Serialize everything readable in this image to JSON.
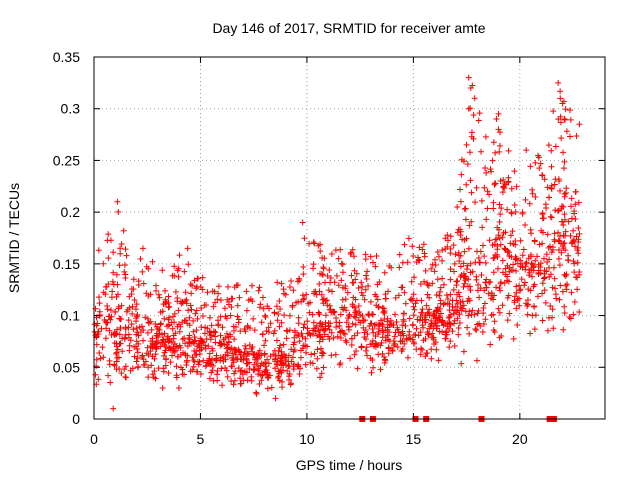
{
  "chart_data": {
    "type": "scatter",
    "title": "Day 146 of 2017, SRMTID for receiver amte",
    "xlabel": "GPS time / hours",
    "ylabel": "SRMTID / TECUs",
    "xlim": [
      0,
      24
    ],
    "ylim": [
      0,
      0.35
    ],
    "grid": true,
    "marker": "+",
    "color": "#ff0000",
    "x_ticks": [
      0,
      5,
      10,
      15,
      20
    ],
    "x_tick_labels": [
      "0",
      "5",
      "10",
      "15",
      "20"
    ],
    "y_ticks": [
      0,
      0.05,
      0.1,
      0.15,
      0.2,
      0.25,
      0.3,
      0.35
    ],
    "y_tick_labels": [
      "0",
      "0.05",
      "0.1",
      "0.15",
      "0.2",
      "0.25",
      "0.3",
      "0.35"
    ],
    "zero_markers_x": [
      12.6,
      13.1,
      15.1,
      15.6,
      18.2,
      21.4,
      21.6
    ],
    "envelope": [
      {
        "x": 0.0,
        "lo": 0.02,
        "mid": 0.08,
        "hi": 0.15
      },
      {
        "x": 1.0,
        "lo": 0.02,
        "mid": 0.1,
        "hi": 0.21
      },
      {
        "x": 2.0,
        "lo": 0.03,
        "mid": 0.085,
        "hi": 0.16
      },
      {
        "x": 3.0,
        "lo": 0.03,
        "mid": 0.08,
        "hi": 0.15
      },
      {
        "x": 4.0,
        "lo": 0.03,
        "mid": 0.08,
        "hi": 0.16
      },
      {
        "x": 5.0,
        "lo": 0.03,
        "mid": 0.075,
        "hi": 0.14
      },
      {
        "x": 6.0,
        "lo": 0.025,
        "mid": 0.07,
        "hi": 0.13
      },
      {
        "x": 7.0,
        "lo": 0.025,
        "mid": 0.065,
        "hi": 0.13
      },
      {
        "x": 8.0,
        "lo": 0.02,
        "mid": 0.06,
        "hi": 0.13
      },
      {
        "x": 9.0,
        "lo": 0.02,
        "mid": 0.065,
        "hi": 0.14
      },
      {
        "x": 10.0,
        "lo": 0.03,
        "mid": 0.08,
        "hi": 0.19
      },
      {
        "x": 11.0,
        "lo": 0.04,
        "mid": 0.1,
        "hi": 0.16
      },
      {
        "x": 12.0,
        "lo": 0.05,
        "mid": 0.11,
        "hi": 0.17
      },
      {
        "x": 13.0,
        "lo": 0.04,
        "mid": 0.1,
        "hi": 0.16
      },
      {
        "x": 14.0,
        "lo": 0.04,
        "mid": 0.09,
        "hi": 0.16
      },
      {
        "x": 15.0,
        "lo": 0.04,
        "mid": 0.1,
        "hi": 0.18
      },
      {
        "x": 16.0,
        "lo": 0.05,
        "mid": 0.1,
        "hi": 0.16
      },
      {
        "x": 17.0,
        "lo": 0.05,
        "mid": 0.11,
        "hi": 0.2
      },
      {
        "x": 17.7,
        "lo": 0.06,
        "mid": 0.16,
        "hi": 0.33
      },
      {
        "x": 18.5,
        "lo": 0.05,
        "mid": 0.14,
        "hi": 0.27
      },
      {
        "x": 19.0,
        "lo": 0.06,
        "mid": 0.17,
        "hi": 0.29
      },
      {
        "x": 20.0,
        "lo": 0.07,
        "mid": 0.15,
        "hi": 0.25
      },
      {
        "x": 21.0,
        "lo": 0.07,
        "mid": 0.15,
        "hi": 0.26
      },
      {
        "x": 21.8,
        "lo": 0.06,
        "mid": 0.18,
        "hi": 0.32
      },
      {
        "x": 22.8,
        "lo": 0.08,
        "mid": 0.17,
        "hi": 0.29
      }
    ],
    "highlight_points": [
      {
        "x": 1.1,
        "y": 0.21
      },
      {
        "x": 0.9,
        "y": 0.01
      },
      {
        "x": 17.6,
        "y": 0.33
      },
      {
        "x": 17.7,
        "y": 0.32
      },
      {
        "x": 17.6,
        "y": 0.3
      },
      {
        "x": 17.5,
        "y": 0.265
      },
      {
        "x": 19.0,
        "y": 0.295
      },
      {
        "x": 18.9,
        "y": 0.29
      },
      {
        "x": 19.0,
        "y": 0.28
      },
      {
        "x": 21.8,
        "y": 0.325
      },
      {
        "x": 21.9,
        "y": 0.31
      },
      {
        "x": 22.0,
        "y": 0.305
      },
      {
        "x": 22.1,
        "y": 0.29
      },
      {
        "x": 22.8,
        "y": 0.285
      },
      {
        "x": 20.3,
        "y": 0.26
      },
      {
        "x": 20.9,
        "y": 0.253
      },
      {
        "x": 9.8,
        "y": 0.19
      },
      {
        "x": 4.4,
        "y": 0.165
      },
      {
        "x": 2.3,
        "y": 0.165
      }
    ]
  }
}
